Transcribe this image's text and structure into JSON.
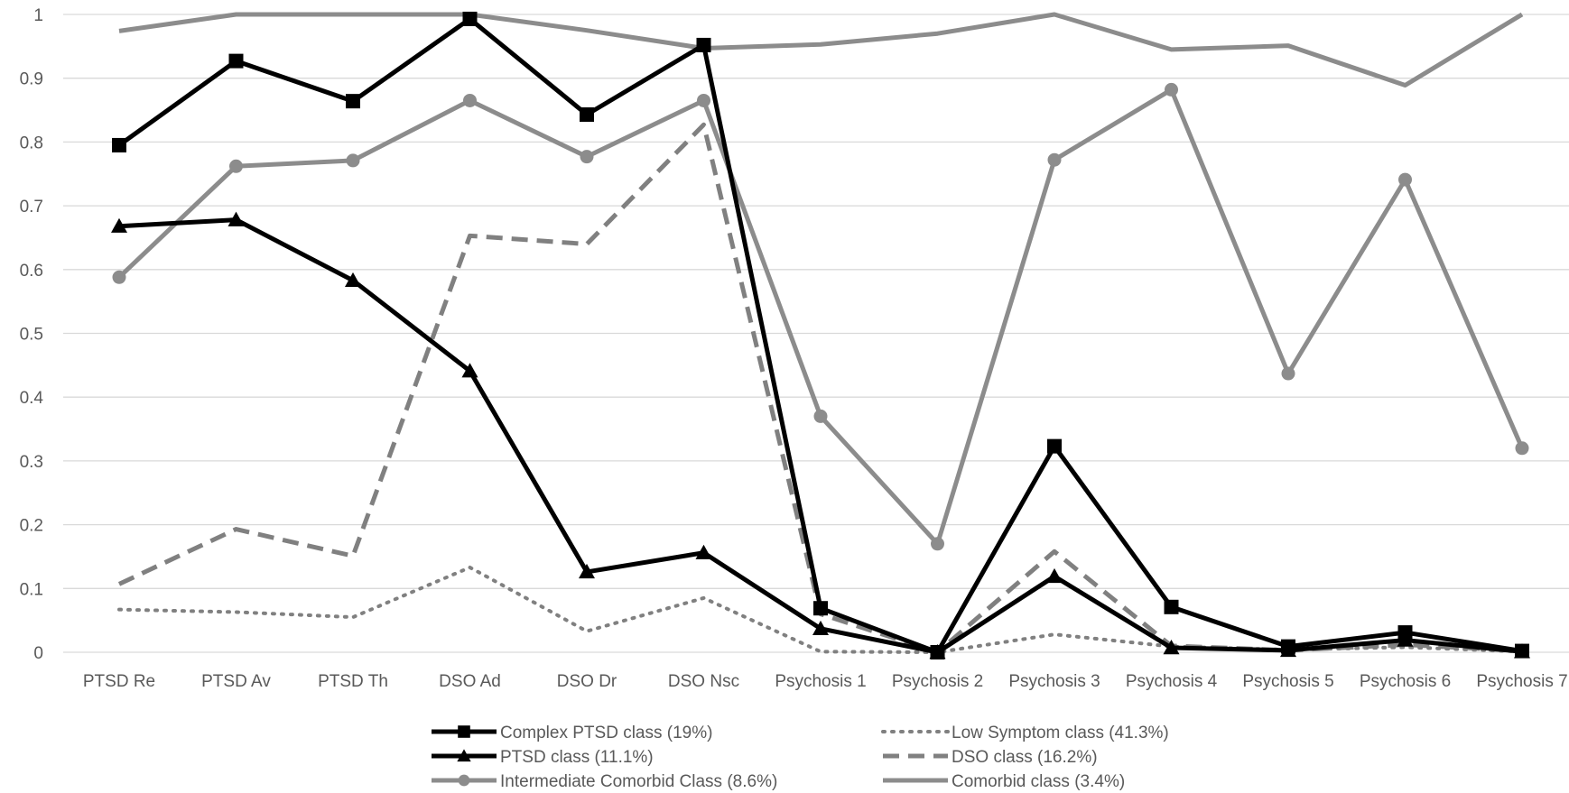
{
  "chart_data": {
    "type": "line",
    "title": "",
    "xlabel": "",
    "ylabel": "",
    "ylim": [
      0,
      1
    ],
    "yticks": [
      0,
      0.1,
      0.2,
      0.3,
      0.4,
      0.5,
      0.6,
      0.7,
      0.8,
      0.9,
      1
    ],
    "ytick_labels": [
      "0",
      "0.1",
      "0.2",
      "0.3",
      "0.4",
      "0.5",
      "0.6",
      "0.7",
      "0.8",
      "0.9",
      "1"
    ],
    "grid": true,
    "legend_position": "bottom",
    "categories": [
      "PTSD Re",
      "PTSD Av",
      "PTSD Th",
      "DSO Ad",
      "DSO Dr",
      "DSO Nsc",
      "Psychosis 1",
      "Psychosis 2",
      "Psychosis 3",
      "Psychosis 4",
      "Psychosis 5",
      "Psychosis 6",
      "Psychosis 7"
    ],
    "series": [
      {
        "name": "Complex PTSD class (19%)",
        "color": "#000000",
        "line_style": "solid",
        "marker": "square",
        "values": [
          0.795,
          0.927,
          0.864,
          0.993,
          0.843,
          0.952,
          0.069,
          0.0,
          0.323,
          0.071,
          0.009,
          0.031,
          0.002
        ]
      },
      {
        "name": "Low Symptom class (41.3%)",
        "color": "#808080",
        "line_style": "dotted",
        "marker": "none",
        "values": [
          0.067,
          0.063,
          0.055,
          0.133,
          0.033,
          0.085,
          0.001,
          0.0,
          0.028,
          0.009,
          0.004,
          0.008,
          0.001
        ]
      },
      {
        "name": "PTSD class (11.1%)",
        "color": "#000000",
        "line_style": "solid",
        "marker": "triangle",
        "values": [
          0.668,
          0.678,
          0.583,
          0.441,
          0.126,
          0.156,
          0.037,
          0.0,
          0.119,
          0.007,
          0.003,
          0.019,
          0.001
        ]
      },
      {
        "name": "DSO class (16.2%)",
        "color": "#808080",
        "line_style": "dashed",
        "marker": "none",
        "values": [
          0.107,
          0.193,
          0.151,
          0.653,
          0.64,
          0.827,
          0.06,
          0.0,
          0.158,
          0.01,
          0.003,
          0.012,
          0.002
        ]
      },
      {
        "name": "Intermediate Comorbid Class (8.6%)",
        "color": "#8c8c8c",
        "line_style": "solid",
        "marker": "circle",
        "values": [
          0.588,
          0.762,
          0.771,
          0.865,
          0.777,
          0.865,
          0.37,
          0.17,
          0.772,
          0.882,
          0.437,
          0.741,
          0.32
        ]
      },
      {
        "name": "Comorbid class (3.4%)",
        "color": "#8c8c8c",
        "line_style": "solid",
        "marker": "none",
        "values": [
          0.974,
          1.0,
          1.0,
          1.0,
          0.975,
          0.947,
          0.953,
          0.97,
          1.0,
          0.945,
          0.951,
          0.889,
          1.0
        ]
      }
    ]
  }
}
